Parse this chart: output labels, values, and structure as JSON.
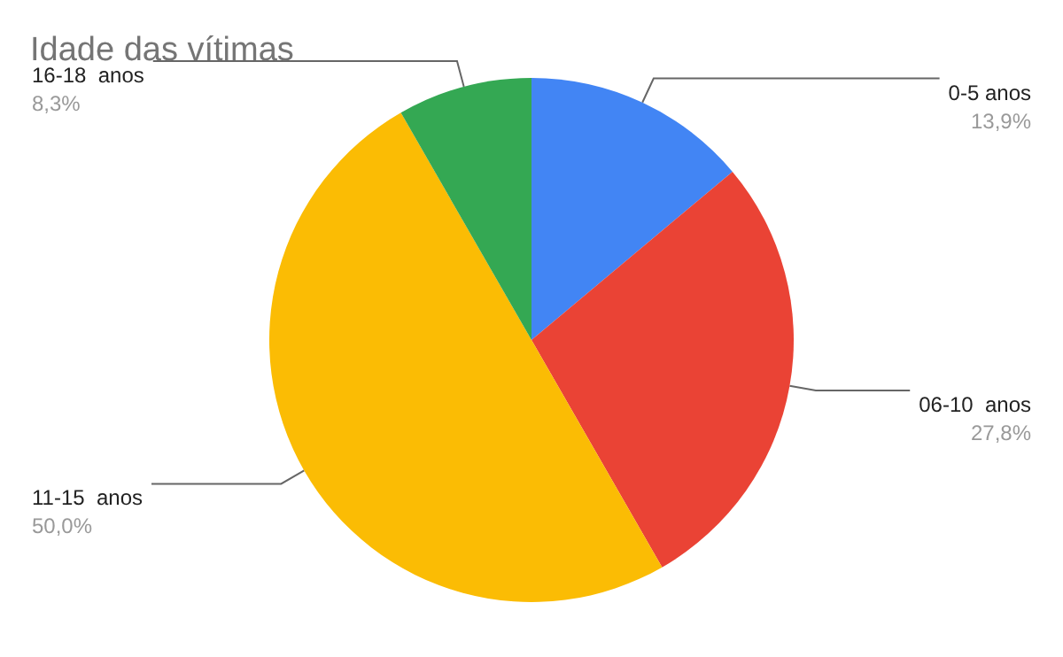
{
  "chart_data": {
    "type": "pie",
    "title": "Idade das vítimas",
    "categories": [
      "0-5 anos",
      "06-10  anos",
      "11-15  anos",
      "16-18  anos"
    ],
    "values": [
      13.9,
      27.8,
      50.0,
      8.3
    ],
    "value_labels": [
      "13,9%",
      "27,8%",
      "50,0%",
      "8,3%"
    ],
    "colors": [
      "#4285f4",
      "#ea4335",
      "#fbbc04",
      "#34a853"
    ]
  }
}
